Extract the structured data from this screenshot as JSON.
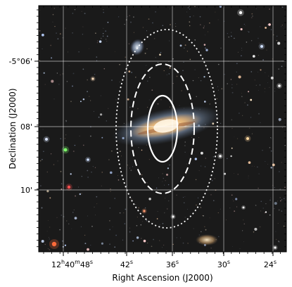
{
  "figure": {
    "x_axis": {
      "title": "Right Ascension (J2000)",
      "ticks": [
        {
          "prefix": "12",
          "h": "h",
          "mid": "40",
          "m": "m",
          "val": "48",
          "unit": "s"
        },
        {
          "prefix": "",
          "h": "",
          "mid": "",
          "m": "",
          "val": "42",
          "unit": "s"
        },
        {
          "prefix": "",
          "h": "",
          "mid": "",
          "m": "",
          "val": "36",
          "unit": "s"
        },
        {
          "prefix": "",
          "h": "",
          "mid": "",
          "m": "",
          "val": "30",
          "unit": "s"
        },
        {
          "prefix": "",
          "h": "",
          "mid": "",
          "m": "",
          "val": "24",
          "unit": "s"
        }
      ]
    },
    "y_axis": {
      "title": "Declination (J2000)",
      "ticks": [
        "-5°06'",
        "08'",
        "10'"
      ]
    },
    "image": {
      "description_colors": {
        "sky": "#161616",
        "galaxy_core": "#f0d7b0",
        "galaxy_halo": "#9fb6d6",
        "grid": "#ffffff",
        "ellipse": "#ffffff"
      },
      "apertures": [
        {
          "style": "solid"
        },
        {
          "style": "dashed"
        },
        {
          "style": "dotted"
        }
      ]
    }
  }
}
